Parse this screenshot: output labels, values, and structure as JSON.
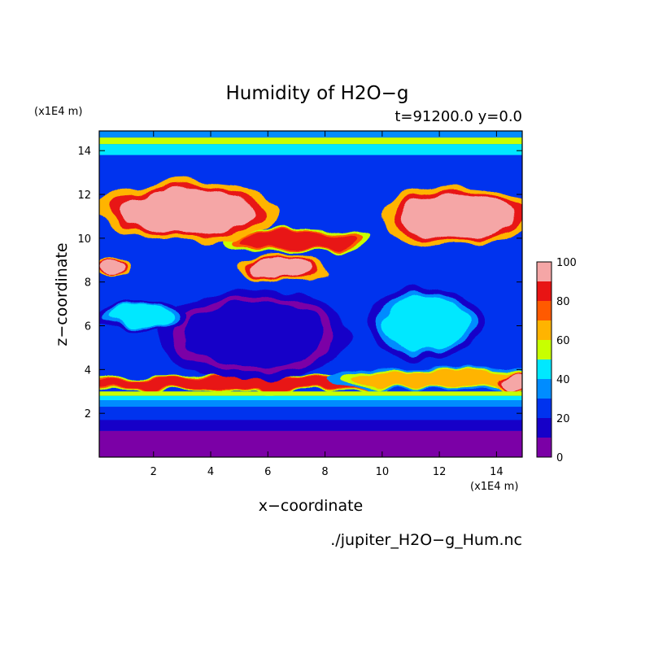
{
  "chart_data": {
    "type": "heatmap",
    "title": "Humidity of H2O−g",
    "subtitle": "t=91200.0 y=0.0",
    "xlabel": "x−coordinate",
    "ylabel": "z−coordinate",
    "x_unit": "(x1E4 m)",
    "y_unit": "(x1E4 m)",
    "xlim": [
      0.1,
      14.9
    ],
    "ylim": [
      0.0,
      14.9
    ],
    "x_ticks": [
      2,
      4,
      6,
      8,
      10,
      12,
      14
    ],
    "y_ticks": [
      2,
      4,
      6,
      8,
      10,
      12,
      14
    ],
    "colorbar": {
      "min": 0,
      "max": 100,
      "tick_values": [
        0,
        20,
        40,
        60,
        80,
        100
      ],
      "levels": [
        {
          "from": 0,
          "to": 10,
          "color": "#7b00a6"
        },
        {
          "from": 10,
          "to": 20,
          "color": "#1600c8"
        },
        {
          "from": 20,
          "to": 30,
          "color": "#0033ee"
        },
        {
          "from": 30,
          "to": 40,
          "color": "#008cff"
        },
        {
          "from": 40,
          "to": 50,
          "color": "#00e8ff"
        },
        {
          "from": 50,
          "to": 60,
          "color": "#c8ff00"
        },
        {
          "from": 60,
          "to": 70,
          "color": "#ffb400"
        },
        {
          "from": 70,
          "to": 80,
          "color": "#ff5a00"
        },
        {
          "from": 80,
          "to": 90,
          "color": "#e81414"
        },
        {
          "from": 90,
          "to": 100,
          "color": "#f5a6a6"
        }
      ]
    },
    "horizontal_bands_z_humidity": [
      {
        "z_from": 0.0,
        "z_to": 1.2,
        "value": 5
      },
      {
        "z_from": 1.2,
        "z_to": 1.7,
        "value": 15
      },
      {
        "z_from": 1.7,
        "z_to": 2.3,
        "value": 25
      },
      {
        "z_from": 2.3,
        "z_to": 2.6,
        "value": 35
      },
      {
        "z_from": 2.6,
        "z_to": 2.8,
        "value": 45
      },
      {
        "z_from": 2.8,
        "z_to": 3.0,
        "value": 55
      },
      {
        "z_from": 13.8,
        "z_to": 14.3,
        "value": 45
      },
      {
        "z_from": 14.3,
        "z_to": 14.6,
        "value": 55
      },
      {
        "z_from": 14.6,
        "z_to": 14.9,
        "value": 35
      }
    ],
    "features": [
      {
        "x": 5.0,
        "z": 3.4,
        "rx": 5.5,
        "rz": 0.3,
        "value": 85
      },
      {
        "x": 12.0,
        "z": 3.6,
        "rx": 3.0,
        "rz": 0.4,
        "value": 65
      },
      {
        "x": 14.7,
        "z": 3.4,
        "rx": 0.6,
        "rz": 0.3,
        "value": 95
      },
      {
        "x": 6.5,
        "z": 8.6,
        "rx": 1.2,
        "rz": 0.5,
        "value": 95
      },
      {
        "x": 0.6,
        "z": 8.7,
        "rx": 0.5,
        "rz": 0.3,
        "value": 95
      },
      {
        "x": 7.0,
        "z": 9.9,
        "rx": 2.0,
        "rz": 0.4,
        "value": 85
      },
      {
        "x": 12.6,
        "z": 11.0,
        "rx": 2.0,
        "rz": 1.0,
        "value": 95
      },
      {
        "x": 3.2,
        "z": 11.2,
        "rx": 2.4,
        "rz": 1.0,
        "value": 95
      },
      {
        "x": 5.5,
        "z": 5.6,
        "rx": 2.5,
        "rz": 1.5,
        "value": 15
      },
      {
        "x": 11.5,
        "z": 6.1,
        "rx": 1.5,
        "rz": 1.2,
        "value": 45
      },
      {
        "x": 1.5,
        "z": 6.4,
        "rx": 1.2,
        "rz": 0.5,
        "value": 45
      }
    ],
    "grid": false,
    "legend": "right"
  },
  "footer": {
    "source_file": "./jupiter_H2O−g_Hum.nc"
  }
}
